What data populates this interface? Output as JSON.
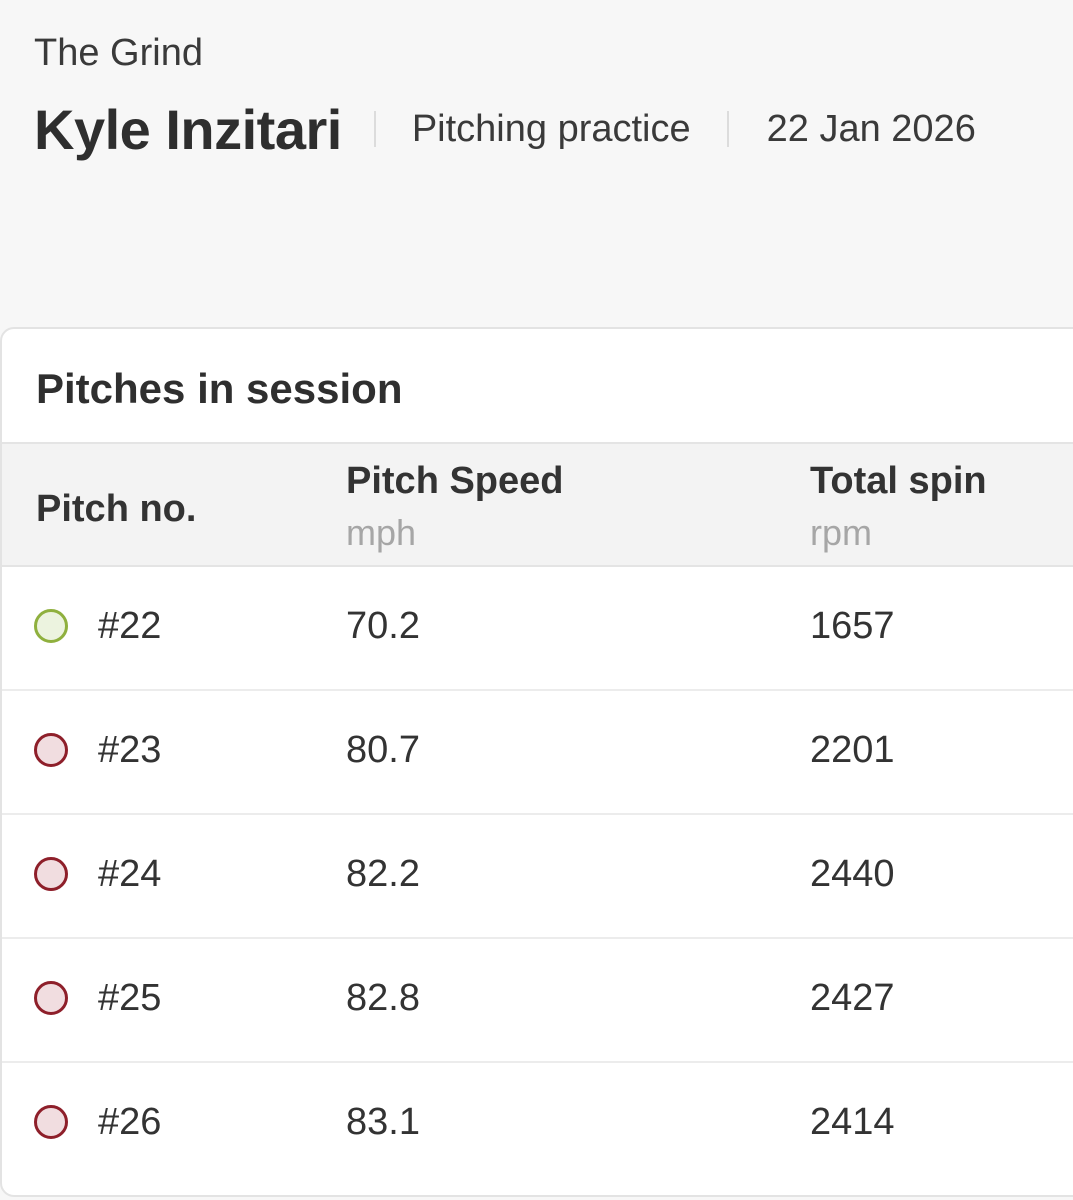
{
  "header": {
    "org": "The Grind",
    "player": "Kyle Inzitari",
    "session_type": "Pitching practice",
    "date": "22 Jan 2026"
  },
  "card": {
    "title": "Pitches in session",
    "columns": {
      "pitch_no": "Pitch no.",
      "speed": "Pitch Speed",
      "speed_unit": "mph",
      "spin": "Total spin",
      "spin_unit": "rpm"
    },
    "rows": [
      {
        "number": "#22",
        "speed": "70.2",
        "spin": "1657",
        "status": "green"
      },
      {
        "number": "#23",
        "speed": "80.7",
        "spin": "2201",
        "status": "red"
      },
      {
        "number": "#24",
        "speed": "82.2",
        "spin": "2440",
        "status": "red"
      },
      {
        "number": "#25",
        "speed": "82.8",
        "spin": "2427",
        "status": "red"
      },
      {
        "number": "#26",
        "speed": "83.1",
        "spin": "2414",
        "status": "red"
      }
    ]
  },
  "colors": {
    "green_status": "#8fb03e",
    "red_status": "#8e1f2a"
  }
}
